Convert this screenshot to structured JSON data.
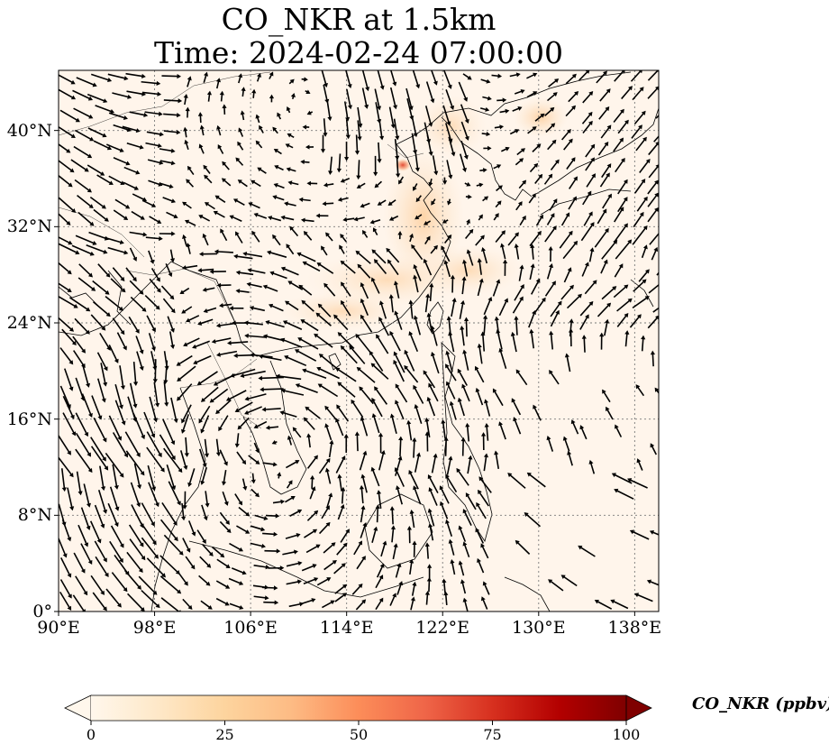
{
  "title": {
    "line1": "CO_NKR at 1.5km",
    "line2": "Time: 2024-02-24 07:00:00"
  },
  "map": {
    "projection": "PlateCarree",
    "lon_range": [
      90,
      140
    ],
    "lat_range": [
      0,
      45
    ],
    "gridlines": "dotted",
    "lat_ticks": [
      0,
      8,
      16,
      24,
      32,
      40
    ],
    "lon_ticks": [
      90,
      98,
      106,
      114,
      122,
      130,
      138
    ],
    "lat_tick_labels": [
      "0°",
      "8°N",
      "16°N",
      "24°N",
      "32°N",
      "40°N"
    ],
    "lon_tick_labels": [
      "90°E",
      "98°E",
      "106°E",
      "114°E",
      "122°E",
      "130°E",
      "138°E"
    ],
    "overlay": "wind vectors (black arrows)",
    "field_colors": {
      "background": "#fff5eb",
      "plume_light": "#fde3c4",
      "plume_mid": "#fdc895",
      "plume_hot": "#e8533a"
    }
  },
  "colorbar": {
    "label": "CO_NKR (ppbv)",
    "ticks": [
      "0",
      "25",
      "50",
      "75",
      "100"
    ],
    "range": [
      0,
      100
    ],
    "extend": "both",
    "colormap": "OrRd",
    "stops": [
      "#fff7ec",
      "#fee8c8",
      "#fdd49e",
      "#fdbb84",
      "#fc8d59",
      "#ef6548",
      "#d7301f",
      "#b30000",
      "#7f0000"
    ]
  }
}
